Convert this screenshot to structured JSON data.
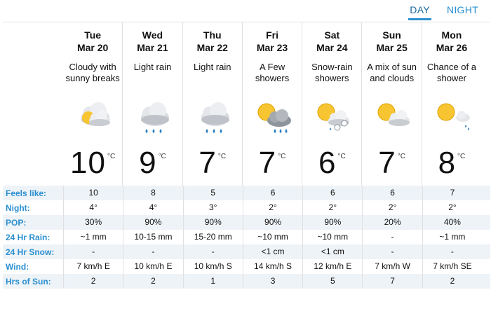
{
  "tabs": {
    "day": "DAY",
    "night": "NIGHT"
  },
  "colors": {
    "accent": "#2a8fd0",
    "alt_row": "#eef3f8"
  },
  "days": [
    {
      "day": "Tue",
      "date": "Mar 20",
      "condition": "Cloudy with sunny breaks",
      "icon": "sun-behind-cloud-icon",
      "temp": "10",
      "unit": "°C"
    },
    {
      "day": "Wed",
      "date": "Mar 21",
      "condition": "Light rain",
      "icon": "rain-cloud-icon",
      "temp": "9",
      "unit": "°C"
    },
    {
      "day": "Thu",
      "date": "Mar 22",
      "condition": "Light rain",
      "icon": "rain-cloud-icon",
      "temp": "7",
      "unit": "°C"
    },
    {
      "day": "Fri",
      "date": "Mar 23",
      "condition": "A Few showers",
      "icon": "sun-showers-icon",
      "temp": "7",
      "unit": "°C"
    },
    {
      "day": "Sat",
      "date": "Mar 24",
      "condition": "Snow-rain showers",
      "icon": "snow-rain-icon",
      "temp": "6",
      "unit": "°C"
    },
    {
      "day": "Sun",
      "date": "Mar 25",
      "condition": "A mix of sun and clouds",
      "icon": "sun-cloud-icon",
      "temp": "7",
      "unit": "°C"
    },
    {
      "day": "Mon",
      "date": "Mar 26",
      "condition": "Chance of a shower",
      "icon": "sun-shower-chance-icon",
      "temp": "8",
      "unit": "°C"
    }
  ],
  "rows": [
    {
      "label": "Feels like:",
      "values": [
        "10",
        "8",
        "5",
        "6",
        "6",
        "6",
        "7"
      ]
    },
    {
      "label": "Night:",
      "values": [
        "4°",
        "4°",
        "3°",
        "2°",
        "2°",
        "2°",
        "2°"
      ]
    },
    {
      "label": "POP:",
      "values": [
        "30%",
        "90%",
        "90%",
        "90%",
        "90%",
        "20%",
        "40%"
      ]
    },
    {
      "label": "24 Hr Rain:",
      "values": [
        "~1 mm",
        "10-15 mm",
        "15-20 mm",
        "~10 mm",
        "~10 mm",
        "-",
        "~1 mm"
      ]
    },
    {
      "label": "24 Hr Snow:",
      "values": [
        "-",
        "-",
        "-",
        "<1 cm",
        "<1 cm",
        "-",
        "-"
      ]
    },
    {
      "label": "Wind:",
      "values": [
        "7 km/h E",
        "10 km/h E",
        "10 km/h S",
        "14 km/h S",
        "12 km/h E",
        "7 km/h W",
        "7 km/h SE"
      ]
    },
    {
      "label": "Hrs of Sun:",
      "values": [
        "2",
        "2",
        "1",
        "3",
        "5",
        "7",
        "2"
      ]
    }
  ]
}
